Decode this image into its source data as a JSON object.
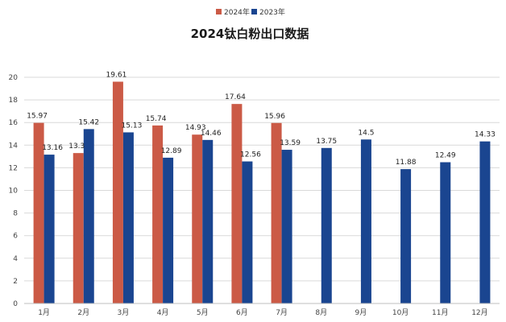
{
  "chart_data": {
    "type": "bar",
    "title": "2024钛白粉出口数据",
    "xlabel": "",
    "ylabel": "",
    "categories": [
      "1月",
      "2月",
      "3月",
      "4月",
      "5月",
      "6月",
      "7月",
      "8月",
      "9月",
      "10月",
      "11月",
      "12月"
    ],
    "series": [
      {
        "name": "2024年",
        "color": "#CB5A46",
        "values": [
          15.97,
          13.3,
          19.61,
          15.74,
          14.93,
          17.64,
          15.96,
          null,
          null,
          null,
          null,
          null
        ]
      },
      {
        "name": "2023年",
        "color": "#1A4590",
        "values": [
          13.16,
          15.42,
          15.13,
          12.89,
          14.46,
          12.56,
          13.59,
          13.75,
          14.5,
          11.88,
          12.49,
          14.33
        ]
      }
    ],
    "ylim": [
      0,
      20
    ],
    "yticks": [
      0,
      2,
      4,
      6,
      8,
      10,
      12,
      14,
      16,
      18,
      20
    ],
    "grid": true,
    "legend_position": "top-center"
  }
}
